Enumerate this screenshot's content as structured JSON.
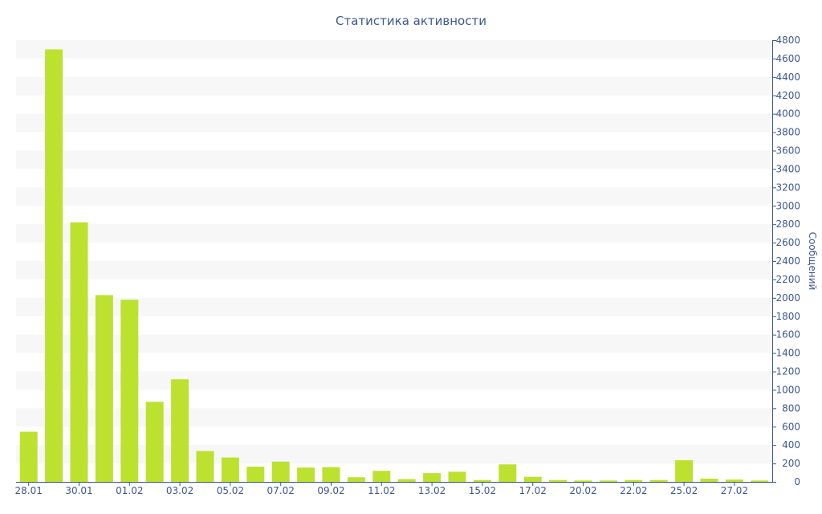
{
  "colors": {
    "bar": "#bde12f",
    "text": "#3d5791",
    "axis": "#3d5791",
    "band": "#f7f7f7"
  },
  "chart_data": {
    "type": "bar",
    "title": "Статистика активности",
    "xlabel": "",
    "ylabel": "Сообщений",
    "ylim": [
      0,
      4800
    ],
    "y_axis_side": "right",
    "grid": "alternating horizontal bands",
    "legend": "none",
    "yticks": [
      0,
      200,
      400,
      600,
      800,
      1000,
      1200,
      1400,
      1600,
      1800,
      2000,
      2200,
      2400,
      2600,
      2800,
      3000,
      3200,
      3400,
      3600,
      3800,
      4000,
      4200,
      4400,
      4600,
      4800
    ],
    "x_tick_labels": [
      {
        "index": 0,
        "label": "28.01"
      },
      {
        "index": 2,
        "label": "30.01"
      },
      {
        "index": 4,
        "label": "01.02"
      },
      {
        "index": 6,
        "label": "03.02"
      },
      {
        "index": 8,
        "label": "05.02"
      },
      {
        "index": 10,
        "label": "07.02"
      },
      {
        "index": 12,
        "label": "09.02"
      },
      {
        "index": 14,
        "label": "11.02"
      },
      {
        "index": 16,
        "label": "13.02"
      },
      {
        "index": 18,
        "label": "15.02"
      },
      {
        "index": 20,
        "label": "17.02"
      },
      {
        "index": 22,
        "label": "20.02"
      },
      {
        "index": 24,
        "label": "22.02"
      },
      {
        "index": 26,
        "label": "25.02"
      },
      {
        "index": 28,
        "label": "27.02"
      }
    ],
    "values": [
      545,
      4700,
      2820,
      2030,
      1980,
      870,
      1115,
      335,
      265,
      165,
      220,
      155,
      160,
      50,
      120,
      30,
      95,
      110,
      20,
      190,
      55,
      20,
      15,
      15,
      20,
      20,
      235,
      35,
      25,
      15
    ]
  }
}
